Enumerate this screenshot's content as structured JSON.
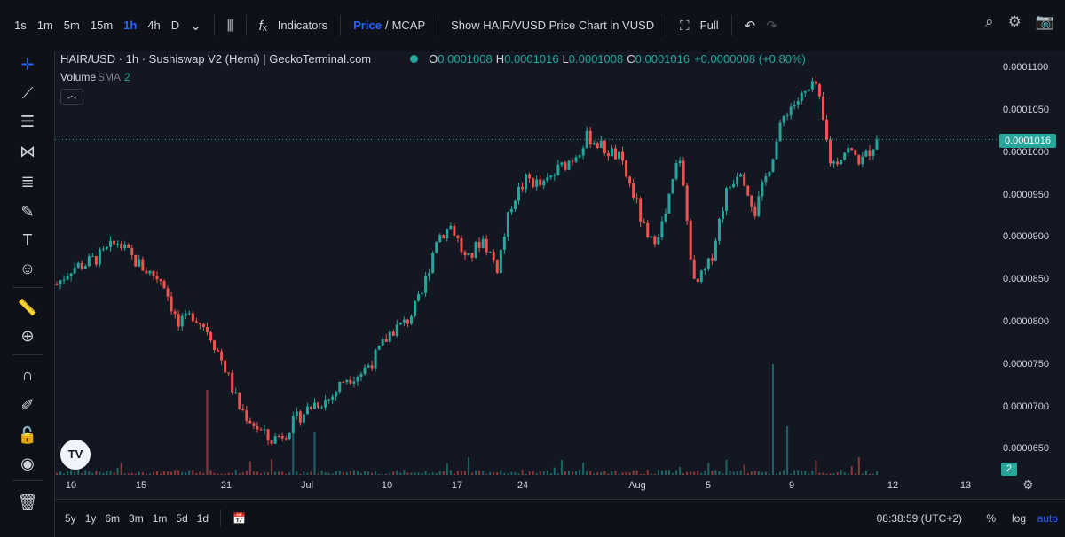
{
  "toolbar": {
    "intervals": [
      "1s",
      "1m",
      "5m",
      "15m",
      "1h",
      "4h",
      "D"
    ],
    "active_interval": "1h",
    "indicators_label": "Indicators",
    "price_label": "Price",
    "mcap_label": "MCAP",
    "show_chart_label": "Show HAIR/VUSD Price Chart in VUSD",
    "full_label": "Full"
  },
  "legend": {
    "title": "HAIR/USD · 1h · Sushiswap V2 (Hemi) | GeckoTerminal.com",
    "o_key": "O",
    "o_val": "0.0001008",
    "h_key": "H",
    "h_val": "0.0001016",
    "l_key": "L",
    "l_val": "0.0001008",
    "c_key": "C",
    "c_val": "0.0001016",
    "change": "+0.0000008 (+0.80%)",
    "volume_label": "Volume",
    "volume_sma": "SMA",
    "volume_len": "2"
  },
  "last_price": "0.0001016",
  "volume_badge": "2",
  "bottom": {
    "ranges": [
      "5y",
      "1y",
      "6m",
      "3m",
      "1m",
      "5d",
      "1d"
    ],
    "clock": "08:38:59 (UTC+2)",
    "percent_label": "%",
    "log_label": "log",
    "auto_label": "auto"
  },
  "colors": {
    "up": "#26a69a",
    "down": "#ef5350",
    "accent": "#2962ff"
  },
  "chart_data": {
    "type": "candlestick",
    "y_axis_ticks": [
      "0.0000650",
      "0.0000700",
      "0.0000750",
      "0.0000800",
      "0.0000850",
      "0.0000900",
      "0.0000950",
      "0.0001000",
      "0.0001050",
      "0.0001100"
    ],
    "x_axis_ticks": [
      "10",
      "15",
      "21",
      "Jul",
      "10",
      "17",
      "24",
      "Aug",
      "5",
      "9",
      "12",
      "13"
    ],
    "ylim": [
      6.2e-05,
      0.000112
    ],
    "close_path": [
      8.45e-05,
      8.65e-05,
      8.7e-05,
      8.8e-05,
      8.95e-05,
      8.75e-05,
      8.6e-05,
      8.5e-05,
      7.95e-05,
      8.1e-05,
      7.9e-05,
      7.5e-05,
      7e-05,
      6.8e-05,
      6.6e-05,
      6.7e-05,
      6.9e-05,
      7.05e-05,
      7.1e-05,
      7.35e-05,
      7.4e-05,
      7.6e-05,
      7.9e-05,
      8e-05,
      8.3e-05,
      9e-05,
      9.15e-05,
      8.7e-05,
      9e-05,
      8.65e-05,
      9.45e-05,
      9.7e-05,
      9.6e-05,
      9.8e-05,
      9.95e-05,
      0.000102,
      0.0001005,
      9.95e-05,
      9.5e-05,
      8.9e-05,
      9.2e-05,
      0.0001,
      8.4e-05,
      8.7e-05,
      9.5e-05,
      9.85e-05,
      9.3e-05,
      9.9e-05,
      0.000105,
      0.0001065,
      0.000108,
      9.85e-05,
      0.0001005,
      9.9e-05,
      0.0001016
    ],
    "volume_note": "volume histogram bars along bottom of chart"
  }
}
